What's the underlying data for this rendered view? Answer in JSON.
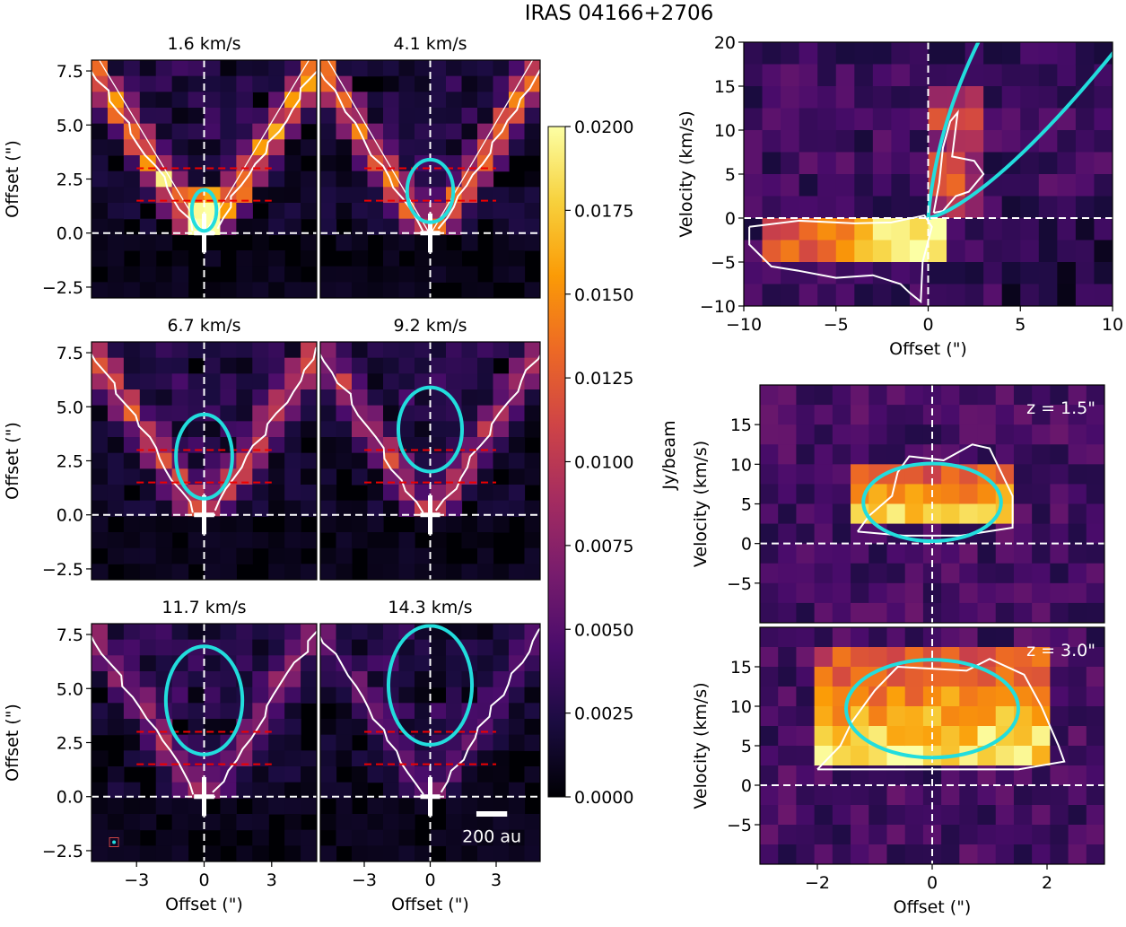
{
  "figure": {
    "title": "IRAS 04166+2706",
    "colormap": [
      "#000004",
      "#1b0c41",
      "#4a0c6b",
      "#781c6d",
      "#a52c60",
      "#cf4446",
      "#ed6925",
      "#fb9b06",
      "#f7d13d",
      "#fcffa4"
    ],
    "contour_color": "#ffffff",
    "ellipse_color": "#22dddd",
    "red_line_color": "#ee0000"
  },
  "chart_data": [
    {
      "type": "heatmap",
      "panel": "channel-map",
      "title": "1.6 km/s",
      "xlabel": "",
      "ylabel": "Offset (\")",
      "xlim": [
        -5,
        5
      ],
      "ylim": [
        -3,
        8
      ],
      "yticks": [
        "7.5",
        "5.0",
        "2.5",
        "0.0",
        "−2.5"
      ],
      "ellipse": {
        "center_x": 0,
        "center_y": 1.05,
        "radius_x": 0.55,
        "radius_y": 0.95
      },
      "cut_lines_y": [
        3.0,
        1.5
      ]
    },
    {
      "type": "heatmap",
      "panel": "channel-map",
      "title": "4.1 km/s",
      "xlabel": "",
      "ylabel": "",
      "xlim": [
        -5,
        5
      ],
      "ylim": [
        -3,
        8
      ],
      "ellipse": {
        "center_x": 0,
        "center_y": 1.95,
        "radius_x": 1.05,
        "radius_y": 1.45
      },
      "cut_lines_y": [
        3.0,
        1.5
      ]
    },
    {
      "type": "heatmap",
      "panel": "channel-map",
      "title": "6.7 km/s",
      "xlabel": "",
      "ylabel": "Offset (\")",
      "xlim": [
        -5,
        5
      ],
      "ylim": [
        -3,
        8
      ],
      "yticks": [
        "7.5",
        "5.0",
        "2.5",
        "0.0",
        "−2.5"
      ],
      "ellipse": {
        "center_x": 0,
        "center_y": 2.7,
        "radius_x": 1.25,
        "radius_y": 1.95
      },
      "cut_lines_y": [
        3.0,
        1.5
      ]
    },
    {
      "type": "heatmap",
      "panel": "channel-map",
      "title": "9.2 km/s",
      "xlabel": "",
      "ylabel": "",
      "xlim": [
        -5,
        5
      ],
      "ylim": [
        -3,
        8
      ],
      "ellipse": {
        "center_x": 0,
        "center_y": 3.95,
        "radius_x": 1.45,
        "radius_y": 1.95
      },
      "cut_lines_y": [
        3.0,
        1.5
      ]
    },
    {
      "type": "heatmap",
      "panel": "channel-map",
      "title": "11.7 km/s",
      "xlabel": "Offset (\")",
      "ylabel": "Offset (\")",
      "xlim": [
        -5,
        5
      ],
      "ylim": [
        -3,
        8
      ],
      "xticks": [
        "−3",
        "0",
        "3"
      ],
      "yticks": [
        "7.5",
        "5.0",
        "2.5",
        "0.0",
        "−2.5"
      ],
      "ellipse": {
        "center_x": 0,
        "center_y": 4.45,
        "radius_x": 1.7,
        "radius_y": 2.5
      },
      "cut_lines_y": [
        3.0,
        1.5
      ]
    },
    {
      "type": "heatmap",
      "panel": "channel-map",
      "title": "14.3 km/s",
      "xlabel": "Offset (\")",
      "ylabel": "",
      "xlim": [
        -5,
        5
      ],
      "ylim": [
        -3,
        8
      ],
      "xticks": [
        "−3",
        "0",
        "3"
      ],
      "ellipse": {
        "center_x": 0,
        "center_y": 5.15,
        "radius_x": 1.9,
        "radius_y": 2.75
      },
      "cut_lines_y": [
        3.0,
        1.5
      ],
      "scalebar_label": "200 au"
    },
    {
      "type": "heatmap",
      "panel": "pv-along-jet",
      "title": "",
      "xlabel": "Offset (\")",
      "ylabel": "Velocity (km/s)",
      "xlim": [
        -10,
        10
      ],
      "ylim": [
        -10,
        20
      ],
      "xticks": [
        "−10",
        "−5",
        "0",
        "5",
        "10"
      ],
      "yticks": [
        "20",
        "15",
        "10",
        "5",
        "0",
        "−5",
        "−10"
      ]
    },
    {
      "type": "heatmap",
      "panel": "pv-transverse",
      "title": "",
      "annotation": "z = 1.5\"",
      "xlabel": "",
      "ylabel": "Velocity (km/s)",
      "xlim": [
        -3,
        3
      ],
      "ylim": [
        -10,
        20
      ],
      "yticks": [
        "15",
        "10",
        "5",
        "0",
        "−5"
      ],
      "ellipse": {
        "center_x": 0,
        "center_y": 5.2,
        "radius_x": 1.2,
        "radius_y": 4.9
      }
    },
    {
      "type": "heatmap",
      "panel": "pv-transverse",
      "title": "",
      "annotation": "z = 3.0\"",
      "xlabel": "Offset (\")",
      "ylabel": "Velocity (km/s)",
      "xlim": [
        -3,
        3
      ],
      "ylim": [
        -10,
        20
      ],
      "xticks": [
        "−2",
        "0",
        "2"
      ],
      "yticks": [
        "15",
        "10",
        "5",
        "0",
        "−5"
      ],
      "ellipse": {
        "center_x": 0,
        "center_y": 9.7,
        "radius_x": 1.5,
        "radius_y": 6.2
      }
    },
    {
      "type": "colorbar",
      "label": "Jy/beam",
      "range": [
        0.0,
        0.02
      ],
      "ticks": [
        "0.0200",
        "0.0175",
        "0.0150",
        "0.0125",
        "0.0100",
        "0.0075",
        "0.0050",
        "0.0025",
        "0.0000"
      ]
    }
  ]
}
